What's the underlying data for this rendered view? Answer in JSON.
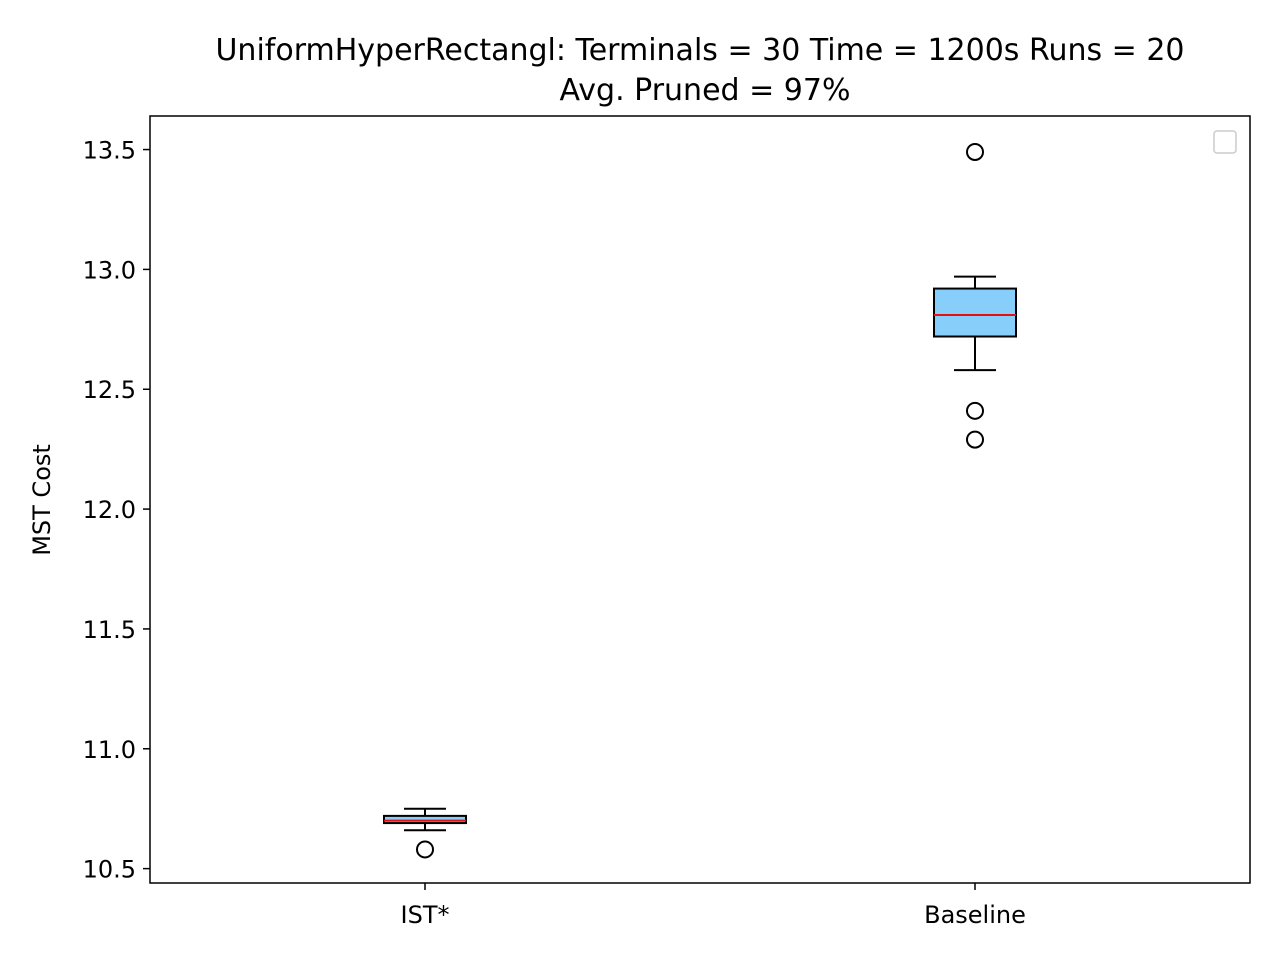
{
  "chart_data": {
    "type": "box",
    "title": "UniformHyperRectangl:  Terminals = 30  Time = 1200s  Runs = 20",
    "subtitle": "Avg. Pruned = 97%",
    "xlabel": "",
    "ylabel": "MST Cost",
    "ylim": [
      10.44,
      13.64
    ],
    "yticks": [
      "10.5",
      "11.0",
      "11.5",
      "12.0",
      "12.5",
      "13.0",
      "13.5"
    ],
    "ytick_values": [
      10.5,
      11.0,
      11.5,
      12.0,
      12.5,
      13.0,
      13.5
    ],
    "categories": [
      "IST*",
      "Baseline"
    ],
    "grid": false,
    "legend": "top-right (empty)",
    "colors": {
      "box_fill": "#87cefa",
      "median": "#e8100e",
      "line": "#000000"
    },
    "boxes": [
      {
        "category": "IST*",
        "whisker_low": 10.66,
        "q1": 10.69,
        "median": 10.7,
        "q3": 10.72,
        "whisker_high": 10.75,
        "outliers": [
          10.58
        ]
      },
      {
        "category": "Baseline",
        "whisker_low": 12.58,
        "q1": 12.72,
        "median": 12.81,
        "q3": 12.92,
        "whisker_high": 12.97,
        "outliers": [
          13.49,
          12.41,
          12.29
        ]
      }
    ]
  }
}
